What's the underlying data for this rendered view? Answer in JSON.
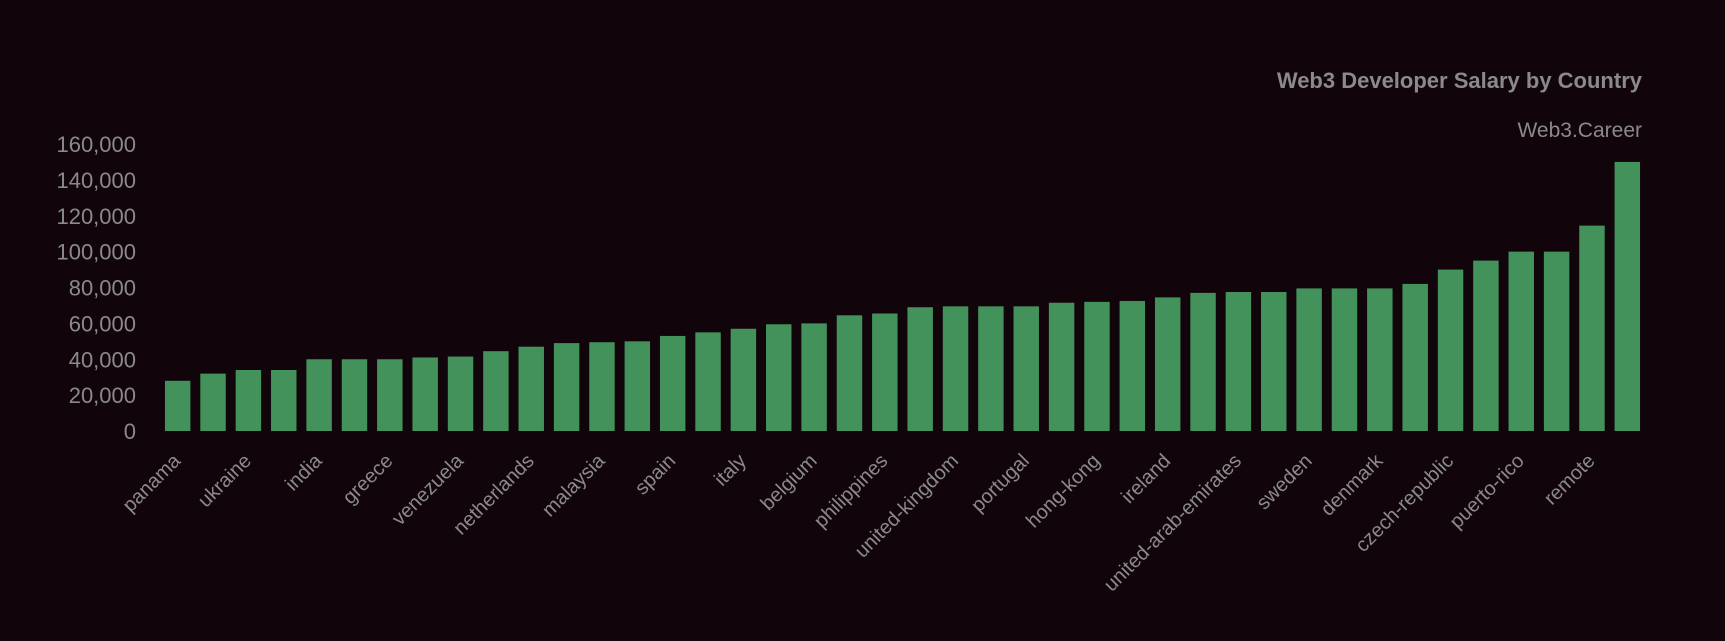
{
  "chart_data": {
    "type": "bar",
    "title": "Web3 Developer Salary by Country",
    "subtitle": "Web3.Career",
    "ylim": [
      0,
      160000
    ],
    "yticks": [
      0,
      20000,
      40000,
      60000,
      80000,
      100000,
      120000,
      140000,
      160000
    ],
    "ytick_labels": [
      "0",
      "20,000",
      "40,000",
      "60,000",
      "80,000",
      "100,000",
      "120,000",
      "140,000",
      "160,000"
    ],
    "grid": false,
    "bar_color": "#43915b",
    "background": "#12040b",
    "bar_count": 42,
    "values": [
      28000,
      32000,
      34000,
      34000,
      40000,
      40000,
      40000,
      41000,
      41500,
      44500,
      47000,
      49000,
      49500,
      50000,
      53000,
      55000,
      57000,
      59500,
      60000,
      64500,
      65500,
      69000,
      69500,
      69500,
      69500,
      71500,
      72000,
      72500,
      74500,
      77000,
      77500,
      77500,
      79500,
      79500,
      79500,
      82000,
      90000,
      95000,
      100000,
      100000,
      114500,
      150000
    ],
    "labeled_categories": [
      {
        "index": 0,
        "label": "panama"
      },
      {
        "index": 2,
        "label": "ukraine"
      },
      {
        "index": 4,
        "label": "india"
      },
      {
        "index": 6,
        "label": "greece"
      },
      {
        "index": 8,
        "label": "venezuela"
      },
      {
        "index": 10,
        "label": "netherlands"
      },
      {
        "index": 12,
        "label": "malaysia"
      },
      {
        "index": 14,
        "label": "spain"
      },
      {
        "index": 16,
        "label": "italy"
      },
      {
        "index": 18,
        "label": "belgium"
      },
      {
        "index": 20,
        "label": "philippines"
      },
      {
        "index": 22,
        "label": "united-kingdom"
      },
      {
        "index": 24,
        "label": "portugal"
      },
      {
        "index": 26,
        "label": "hong-kong"
      },
      {
        "index": 28,
        "label": "ireland"
      },
      {
        "index": 30,
        "label": "united-arab-emirates"
      },
      {
        "index": 32,
        "label": "sweden"
      },
      {
        "index": 34,
        "label": "denmark"
      },
      {
        "index": 36,
        "label": "czech-republic"
      },
      {
        "index": 38,
        "label": "puerto-rico"
      },
      {
        "index": 40,
        "label": "remote"
      }
    ]
  }
}
